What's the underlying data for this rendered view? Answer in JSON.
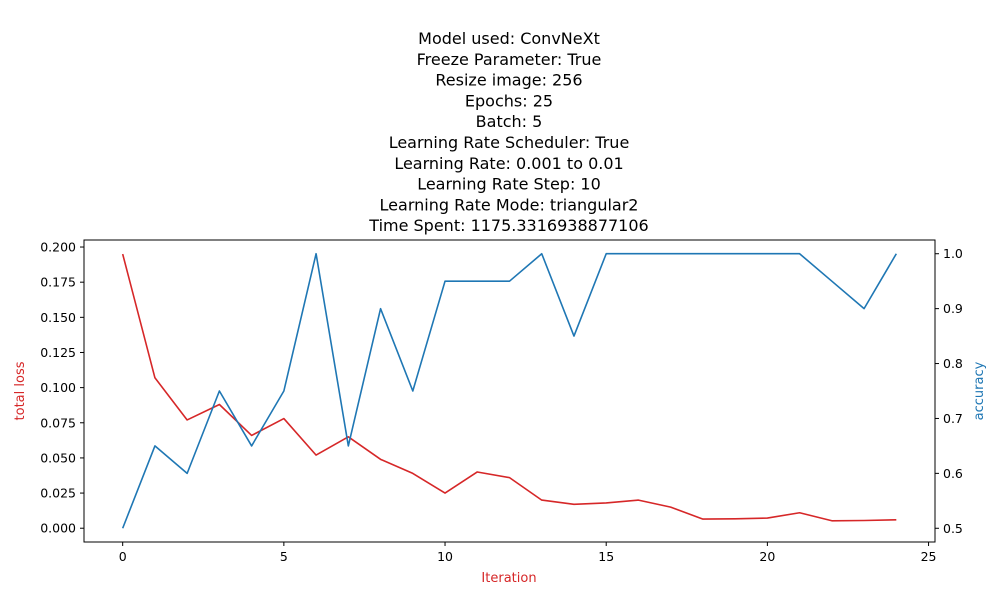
{
  "chart_data": {
    "type": "line",
    "title_lines": [
      "Model used: ConvNeXt",
      "Freeze Parameter: True",
      "Resize image: 256",
      "Epochs: 25",
      "Batch: 5",
      "Learning Rate Scheduler: True",
      "Learning Rate: 0.001 to 0.01",
      "Learning Rate Step: 10",
      "Learning Rate Mode: triangular2",
      "Time Spent: 1175.3316938877106"
    ],
    "xlabel": "Iteration",
    "ylabel_left": "total loss",
    "ylabel_right": "accuracy",
    "xlim": [
      -1.2,
      25.2
    ],
    "ylim_left": [
      -0.0098,
      0.205
    ],
    "ylim_right": [
      0.475,
      1.025
    ],
    "x_ticks": [
      0,
      5,
      10,
      15,
      20,
      25
    ],
    "x_tick_labels": [
      "0",
      "5",
      "10",
      "15",
      "20",
      "25"
    ],
    "y_left_ticks": [
      0.0,
      0.025,
      0.05,
      0.075,
      0.1,
      0.125,
      0.15,
      0.175,
      0.2
    ],
    "y_left_tick_labels": [
      "0.000",
      "0.025",
      "0.050",
      "0.075",
      "0.100",
      "0.125",
      "0.150",
      "0.175",
      "0.200"
    ],
    "y_right_ticks": [
      0.5,
      0.6,
      0.7,
      0.8,
      0.9,
      1.0
    ],
    "y_right_tick_labels": [
      "0.5",
      "0.6",
      "0.7",
      "0.8",
      "0.9",
      "1.0"
    ],
    "grid": false,
    "colors": {
      "loss": "#d62728",
      "accuracy": "#1f77b4",
      "axis": "#000000"
    },
    "series": [
      {
        "axis": "left",
        "x": [
          0,
          1,
          2,
          3,
          4,
          5,
          6,
          7,
          8,
          9,
          10,
          11,
          12,
          13,
          14,
          15,
          16,
          17,
          18,
          19,
          20,
          21,
          22,
          23,
          24
        ],
        "values": [
          0.195,
          0.107,
          0.077,
          0.088,
          0.066,
          0.078,
          0.052,
          0.065,
          0.049,
          0.039,
          0.025,
          0.04,
          0.036,
          0.02,
          0.017,
          0.018,
          0.02,
          0.015,
          0.0065,
          0.0067,
          0.0072,
          0.011,
          0.0053,
          0.0055,
          0.006
        ]
      },
      {
        "axis": "right",
        "x": [
          0,
          1,
          2,
          3,
          4,
          5,
          6,
          7,
          8,
          9,
          10,
          11,
          12,
          13,
          14,
          15,
          16,
          17,
          18,
          19,
          20,
          21,
          22,
          23,
          24
        ],
        "values": [
          0.5,
          0.65,
          0.6,
          0.75,
          0.65,
          0.75,
          1.0,
          0.65,
          0.9,
          0.75,
          0.95,
          0.95,
          0.95,
          1.0,
          0.85,
          1.0,
          1.0,
          1.0,
          1.0,
          1.0,
          1.0,
          1.0,
          0.95,
          0.9,
          1.0
        ]
      }
    ]
  }
}
